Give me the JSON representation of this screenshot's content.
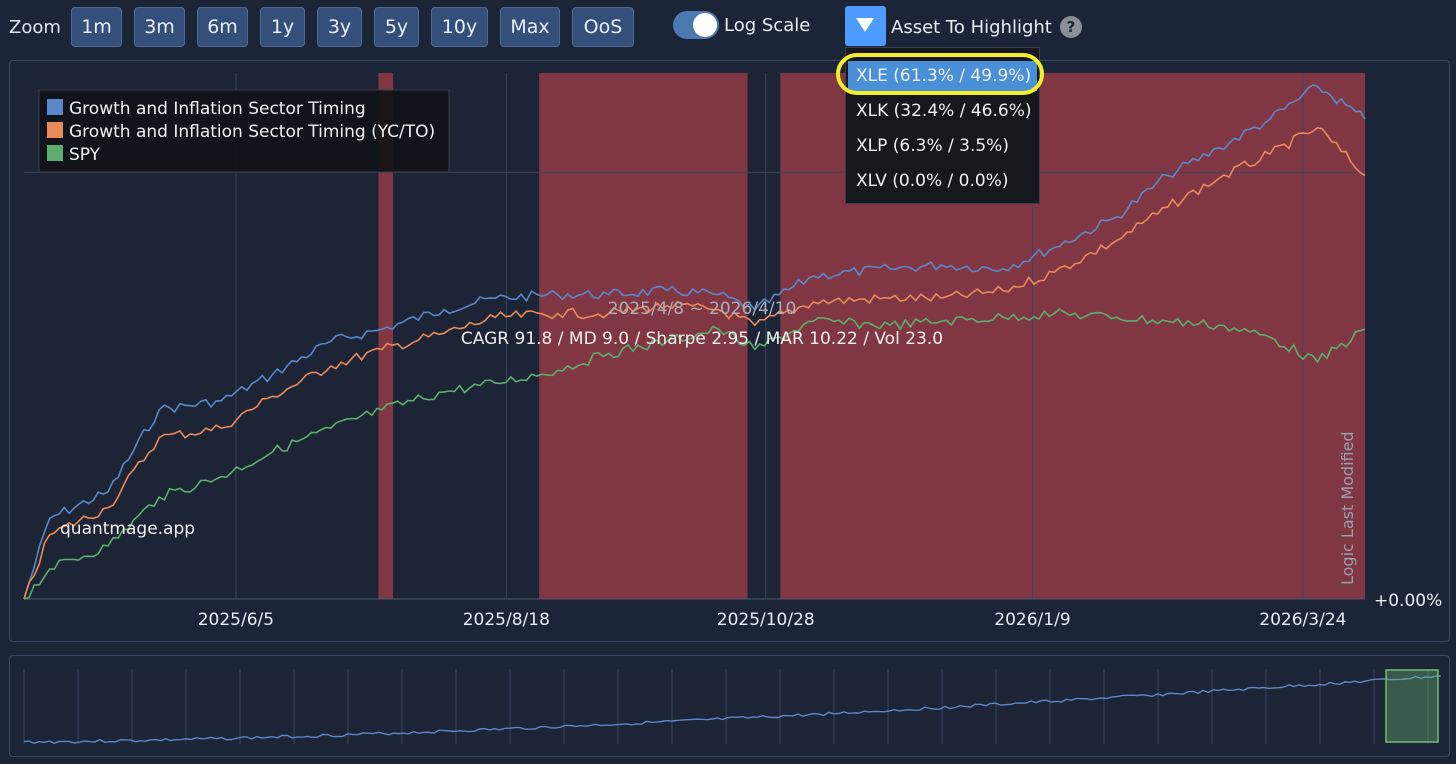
{
  "toolbar": {
    "zoom_label": "Zoom",
    "zoom_buttons": [
      "1m",
      "3m",
      "6m",
      "1y",
      "3y",
      "5y",
      "10y",
      "Max",
      "OoS"
    ],
    "log_scale_label": "Log Scale",
    "log_scale_on": true,
    "asset_highlight_label": "Asset To Highlight",
    "help": "?"
  },
  "dropdown": {
    "options": [
      "XLE (61.3% / 49.9%)",
      "XLK (32.4% / 46.6%)",
      "XLP (6.3% / 3.5%)",
      "XLV (0.0% / 0.0%)"
    ],
    "selected_index": 0
  },
  "chart": {
    "date_range": "2025/4/8 ~ 2026/4/10",
    "stats": "CAGR 91.8 / MD 9.0 / Sharpe 2.95 / MAR 10.22 / Vol 23.0",
    "watermark": "quantmage.app",
    "vertical_label": "Logic Last Modified",
    "baseline_label": "+0.00%",
    "x_ticks": [
      "2025/6/5",
      "2025/8/18",
      "2025/10/28",
      "2026/1/9",
      "2026/3/24"
    ],
    "legend": [
      {
        "name": "Growth and Inflation Sector Timing",
        "color": "#5b86c9"
      },
      {
        "name": "Growth and Inflation Sector Timing (YC/TO)",
        "color": "#e98a5a"
      },
      {
        "name": "SPY",
        "color": "#5dad6c"
      }
    ],
    "highlight_color": "#8a3a44"
  },
  "chart_data": {
    "type": "line",
    "y_scale": "log",
    "x_range": [
      "2025-04-08",
      "2026-04-10"
    ],
    "x_ticks": [
      "2025/6/5",
      "2025/8/18",
      "2025/10/28",
      "2026/1/9",
      "2026/3/24"
    ],
    "highlight_periods": [
      [
        "2025-07-14",
        "2025-07-18"
      ],
      [
        "2025-08-27",
        "2025-10-23"
      ],
      [
        "2025-11-01",
        "2026-04-10"
      ]
    ],
    "series": [
      {
        "name": "Growth and Inflation Sector Timing",
        "x": [
          "2025-04-08",
          "2025-04-15",
          "2025-05-01",
          "2025-05-15",
          "2025-06-01",
          "2025-06-15",
          "2025-07-01",
          "2025-07-15",
          "2025-08-01",
          "2025-08-15",
          "2025-09-01",
          "2025-09-15",
          "2025-10-01",
          "2025-10-15",
          "2025-10-25",
          "2025-11-10",
          "2025-12-01",
          "2025-12-15",
          "2026-01-01",
          "2026-01-15",
          "2026-02-01",
          "2026-02-15",
          "2026-03-01",
          "2026-03-15",
          "2026-03-28",
          "2026-04-10"
        ],
        "y": [
          0,
          14,
          19,
          36,
          38,
          44,
          52,
          55,
          60,
          63,
          64,
          64,
          65,
          64,
          60,
          69,
          71,
          72,
          71,
          77,
          86,
          99,
          108,
          118,
          130,
          118
        ]
      },
      {
        "name": "Growth and Inflation Sector Timing (YC/TO)",
        "x": [
          "2025-04-08",
          "2025-04-15",
          "2025-05-01",
          "2025-05-15",
          "2025-06-01",
          "2025-06-15",
          "2025-07-01",
          "2025-07-15",
          "2025-08-01",
          "2025-08-15",
          "2025-09-01",
          "2025-09-15",
          "2025-10-01",
          "2025-10-15",
          "2025-10-25",
          "2025-11-10",
          "2025-12-01",
          "2025-12-15",
          "2026-01-01",
          "2026-01-15",
          "2026-02-01",
          "2026-02-15",
          "2026-03-01",
          "2026-03-15",
          "2026-03-28",
          "2026-04-10"
        ],
        "y": [
          0,
          11,
          16,
          30,
          32,
          39,
          46,
          50,
          54,
          58,
          59,
          59,
          61,
          60,
          56,
          62,
          63,
          63,
          65,
          70,
          79,
          89,
          98,
          106,
          115,
          99
        ]
      },
      {
        "name": "SPY",
        "x": [
          "2025-04-08",
          "2025-04-15",
          "2025-05-01",
          "2025-05-15",
          "2025-06-01",
          "2025-06-15",
          "2025-07-01",
          "2025-07-15",
          "2025-08-01",
          "2025-08-15",
          "2025-09-01",
          "2025-09-15",
          "2025-10-01",
          "2025-10-15",
          "2025-10-25",
          "2025-11-10",
          "2025-12-01",
          "2025-12-15",
          "2026-01-01",
          "2026-01-15",
          "2026-02-01",
          "2026-02-15",
          "2026-03-01",
          "2026-03-15",
          "2026-03-28",
          "2026-04-10"
        ],
        "y": [
          0,
          5,
          9,
          18,
          22,
          27,
          32,
          36,
          40,
          42,
          45,
          49,
          52,
          55,
          50,
          57,
          56,
          57,
          58,
          59,
          58,
          57,
          56,
          53,
          47,
          55
        ]
      }
    ]
  }
}
